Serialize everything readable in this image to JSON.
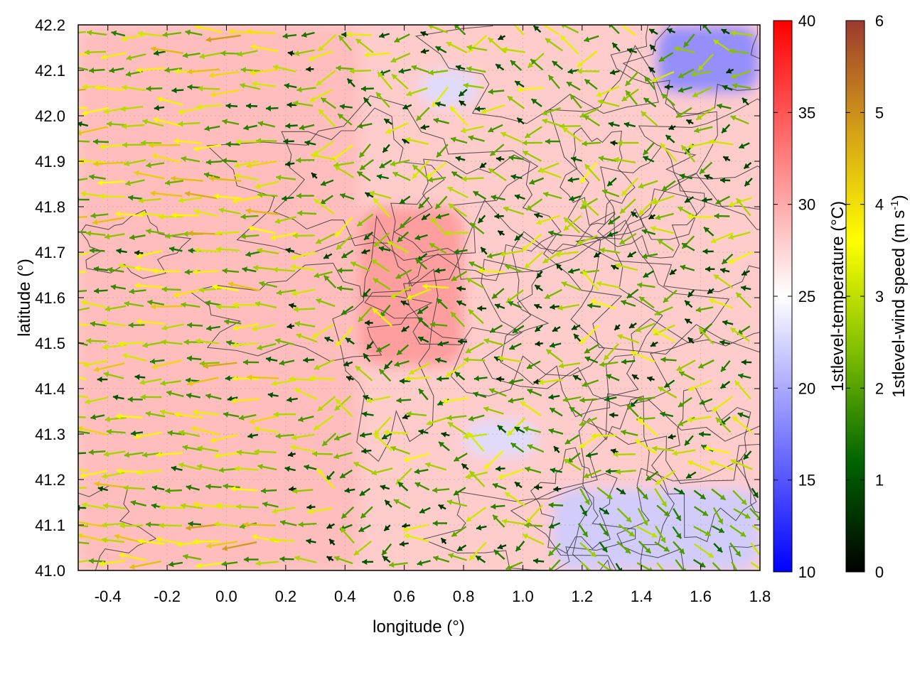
{
  "chart_data": {
    "type": "heatmap",
    "title": "",
    "xlabel": "longitude (°)",
    "ylabel": "latitude (°)",
    "xlim": [
      -0.5,
      1.8
    ],
    "ylim": [
      41.0,
      42.2
    ],
    "xticks": [
      -0.4,
      -0.2,
      0.0,
      0.2,
      0.4,
      0.6,
      0.8,
      1.0,
      1.2,
      1.4,
      1.6,
      1.8
    ],
    "xtick_labels": [
      "-0.4",
      "-0.2",
      "0.0",
      "0.2",
      "0.4",
      "0.6",
      "0.8",
      "1.0",
      "1.2",
      "1.4",
      "1.6",
      "1.8"
    ],
    "yticks": [
      41.0,
      41.1,
      41.2,
      41.3,
      41.4,
      41.5,
      41.6,
      41.7,
      41.8,
      41.9,
      42.0,
      42.1,
      42.2
    ],
    "ytick_labels": [
      "41.0",
      "41.1",
      "41.2",
      "41.3",
      "41.4",
      "41.5",
      "41.6",
      "41.7",
      "41.8",
      "41.9",
      "42.0",
      "42.1",
      "42.2"
    ],
    "grid": true,
    "layers": [
      "temperature heatmap",
      "terrain contour lines",
      "wind vectors"
    ],
    "temperature_colorbar": {
      "label": "1stlevel-temperature (°C)",
      "range": [
        10,
        40
      ],
      "ticks": [
        10,
        15,
        20,
        25,
        30,
        35,
        40
      ],
      "tick_labels": [
        "10",
        "15",
        "20",
        "25",
        "30",
        "35",
        "40"
      ],
      "colors": [
        "#0000ff",
        "#ffffff",
        "#ff0000"
      ]
    },
    "wind_colorbar": {
      "label": "1stlevel-wind speed (m s-1)",
      "label_main": "1stlevel-wind speed (m s",
      "label_sup": "-1",
      "label_end": ")",
      "range": [
        0,
        6
      ],
      "ticks": [
        0,
        1,
        2,
        3,
        4,
        5,
        6
      ],
      "tick_labels": [
        "0",
        "1",
        "2",
        "3",
        "4",
        "5",
        "6"
      ],
      "colors": [
        "#000000",
        "#006400",
        "#7fbf00",
        "#ffff00",
        "#d4a017",
        "#9b3a2e"
      ]
    },
    "temperature_regions": [
      {
        "lon": [
          0.45,
          0.8
        ],
        "lat": [
          41.45,
          41.8
        ],
        "temp_c": 31
      },
      {
        "lon": [
          -0.5,
          0.45
        ],
        "lat": [
          41.0,
          42.2
        ],
        "temp_c": 29
      },
      {
        "lon": [
          1.45,
          1.8
        ],
        "lat": [
          42.05,
          42.2
        ],
        "temp_c": 18
      },
      {
        "lon": [
          1.1,
          1.8
        ],
        "lat": [
          41.0,
          41.18
        ],
        "temp_c": 22
      },
      {
        "lon": [
          0.8,
          1.05
        ],
        "lat": [
          41.25,
          41.33
        ],
        "temp_c": 23
      },
      {
        "lon": [
          0.65,
          0.85
        ],
        "lat": [
          42.02,
          42.1
        ],
        "temp_c": 23
      }
    ]
  }
}
